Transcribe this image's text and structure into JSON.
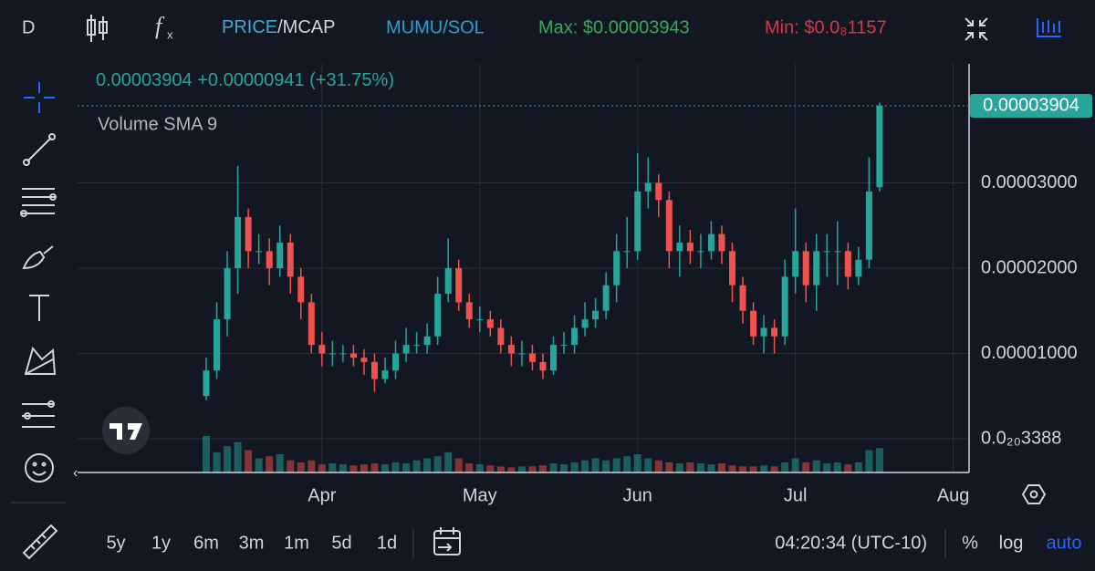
{
  "toolbar": {
    "interval": "D",
    "price": "PRICE",
    "mcap": "/MCAP",
    "pair": "MUMU/SOL",
    "max": "Max: $0.00003943",
    "min": "Min: $0.0₈1157"
  },
  "chart_data": {
    "type": "candlestick",
    "legend_value": "0.00003904",
    "legend_change": "+0.00000941",
    "legend_change_pct": "(+31.75%)",
    "indicator": "Volume SMA 9",
    "last_price": {
      "value": 3.904e-05,
      "label": "0.00003904"
    },
    "up_color": "#26a69a",
    "down_color": "#ef5350",
    "grid": true,
    "ylim": [
      -3.96e-06,
      4.396e-05
    ],
    "yticks": [
      {
        "value": 3.388e-24,
        "label": "0.0₂₀3388"
      },
      {
        "value": 1e-05,
        "label": "0.00001000"
      },
      {
        "value": 2e-05,
        "label": "0.00002000"
      },
      {
        "value": 3e-05,
        "label": "0.00003000"
      }
    ],
    "categories": [
      null,
      null,
      null,
      null,
      null,
      null,
      null,
      null,
      null,
      null,
      null,
      "Apr",
      null,
      null,
      null,
      null,
      null,
      null,
      null,
      null,
      null,
      null,
      null,
      null,
      null,
      null,
      "May",
      null,
      null,
      null,
      null,
      null,
      null,
      null,
      null,
      null,
      null,
      null,
      null,
      null,
      null,
      "Jun",
      null,
      null,
      null,
      null,
      null,
      null,
      null,
      null,
      null,
      null,
      null,
      null,
      null,
      null,
      "Jul",
      null,
      null,
      null,
      null,
      null,
      null,
      null,
      null,
      null,
      null,
      null,
      null,
      null,
      null,
      "Aug"
    ],
    "open": [
      5e-06,
      8e-06,
      1.4e-05,
      2e-05,
      2.6e-05,
      2.2e-05,
      2.2e-05,
      2e-05,
      2.3e-05,
      1.9e-05,
      1.6e-05,
      1.1e-05,
      1e-05,
      1e-05,
      1e-05,
      9.5e-06,
      9e-06,
      7e-06,
      8e-06,
      1e-05,
      1.1e-05,
      1.1e-05,
      1.2e-05,
      1.7e-05,
      2e-05,
      1.6e-05,
      1.4e-05,
      1.4e-05,
      1.3e-05,
      1.1e-05,
      1e-05,
      1e-05,
      9e-06,
      8e-06,
      1.1e-05,
      1.1e-05,
      1.3e-05,
      1.4e-05,
      1.5e-05,
      1.8e-05,
      2.2e-05,
      2.2e-05,
      2.9e-05,
      3e-05,
      2.8e-05,
      2.2e-05,
      2.3e-05,
      2.2e-05,
      2.2e-05,
      2.4e-05,
      2.2e-05,
      1.8e-05,
      1.5e-05,
      1.2e-05,
      1.3e-05,
      1.2e-05,
      1.9e-05,
      2.2e-05,
      1.8e-05,
      2.2e-05,
      2.2e-05,
      2.2e-05,
      1.9e-05,
      2.1e-05,
      2.95e-05,
      null,
      null,
      null,
      null,
      null,
      null,
      null
    ],
    "high": [
      9.5e-06,
      1.6e-05,
      2.2e-05,
      3.2e-05,
      2.7e-05,
      2.4e-05,
      2.35e-05,
      2.5e-05,
      2.4e-05,
      2e-05,
      1.7e-05,
      1.25e-05,
      1.15e-05,
      1.1e-05,
      1.1e-05,
      1.05e-05,
      1e-05,
      9.5e-06,
      1.15e-05,
      1.3e-05,
      1.25e-05,
      1.35e-05,
      1.9e-05,
      2.35e-05,
      2.1e-05,
      1.7e-05,
      1.55e-05,
      1.5e-05,
      1.4e-05,
      1.2e-05,
      1.15e-05,
      1.1e-05,
      1e-05,
      1.2e-05,
      1.25e-05,
      1.45e-05,
      1.6e-05,
      1.65e-05,
      1.95e-05,
      2.4e-05,
      2.6e-05,
      3.35e-05,
      3.3e-05,
      3.1e-05,
      2.9e-05,
      2.5e-05,
      2.45e-05,
      2.4e-05,
      2.55e-05,
      2.5e-05,
      2.3e-05,
      1.9e-05,
      1.6e-05,
      1.45e-05,
      1.4e-05,
      2.1e-05,
      2.7e-05,
      2.3e-05,
      2.4e-05,
      2.4e-05,
      2.55e-05,
      2.3e-05,
      2.25e-05,
      3.3e-05,
      3.943e-05,
      null,
      null,
      null,
      null,
      null,
      null,
      null
    ],
    "low": [
      4.5e-06,
      7e-06,
      1.2e-05,
      1.7e-05,
      2e-05,
      2.05e-05,
      1.8e-05,
      1.9e-05,
      1.7e-05,
      1.4e-05,
      1e-05,
      8.5e-06,
      8.5e-06,
      9e-06,
      8.5e-06,
      7.5e-06,
      5.5e-06,
      6.5e-06,
      7e-06,
      9e-06,
      1e-05,
      1e-05,
      1.1e-05,
      1.6e-05,
      1.5e-05,
      1.3e-05,
      1.25e-05,
      1.2e-05,
      1e-05,
      8.5e-06,
      8.5e-06,
      8e-06,
      7e-06,
      7.5e-06,
      1e-05,
      1e-05,
      1.2e-05,
      1.3e-05,
      1.4e-05,
      1.6e-05,
      2e-05,
      2.1e-05,
      2.7e-05,
      2.6e-05,
      2e-05,
      1.9e-05,
      2.05e-05,
      2e-05,
      2.1e-05,
      2.05e-05,
      1.6e-05,
      1.35e-05,
      1.1e-05,
      1e-05,
      1e-05,
      1.1e-05,
      1.7e-05,
      1.6e-05,
      1.5e-05,
      1.9e-05,
      1.8e-05,
      1.75e-05,
      1.8e-05,
      2e-05,
      2.9e-05,
      null,
      null,
      null,
      null,
      null,
      null,
      null
    ],
    "close": [
      8e-06,
      1.4e-05,
      2e-05,
      2.6e-05,
      2.2e-05,
      2.2e-05,
      2e-05,
      2.3e-05,
      1.9e-05,
      1.6e-05,
      1.1e-05,
      1e-05,
      1e-05,
      1e-05,
      9.5e-06,
      9e-06,
      7e-06,
      8e-06,
      1e-05,
      1.1e-05,
      1.1e-05,
      1.2e-05,
      1.7e-05,
      2e-05,
      1.6e-05,
      1.4e-05,
      1.4e-05,
      1.3e-05,
      1.1e-05,
      1e-05,
      1e-05,
      9e-06,
      8e-06,
      1.1e-05,
      1.1e-05,
      1.3e-05,
      1.4e-05,
      1.5e-05,
      1.8e-05,
      2.2e-05,
      2.2e-05,
      2.9e-05,
      3e-05,
      2.8e-05,
      2.2e-05,
      2.3e-05,
      2.2e-05,
      2.2e-05,
      2.4e-05,
      2.2e-05,
      1.8e-05,
      1.5e-05,
      1.2e-05,
      1.3e-05,
      1.2e-05,
      1.9e-05,
      2.2e-05,
      1.8e-05,
      2.2e-05,
      2.2e-05,
      2.2e-05,
      1.9e-05,
      2.1e-05,
      2.9e-05,
      3.904e-05,
      null,
      null,
      null,
      null,
      null,
      null,
      null
    ],
    "volume": [
      36,
      20,
      26,
      30,
      22,
      14,
      16,
      18,
      12,
      10,
      12,
      8,
      9,
      8,
      7,
      8,
      9,
      8,
      10,
      9,
      12,
      14,
      16,
      20,
      14,
      9,
      8,
      7,
      6,
      5,
      6,
      6,
      7,
      9,
      8,
      10,
      12,
      14,
      12,
      14,
      16,
      18,
      14,
      12,
      10,
      9,
      10,
      9,
      8,
      9,
      7,
      6,
      6,
      7,
      6,
      10,
      14,
      10,
      12,
      9,
      10,
      8,
      10,
      22,
      24,
      null,
      null,
      null,
      null,
      null,
      null,
      null
    ]
  },
  "footer": {
    "ranges": [
      "5y",
      "1y",
      "6m",
      "3m",
      "1m",
      "5d",
      "1d"
    ],
    "time": "04:20:34 (UTC-10)",
    "percent": "%",
    "log": "log",
    "auto": "auto"
  }
}
